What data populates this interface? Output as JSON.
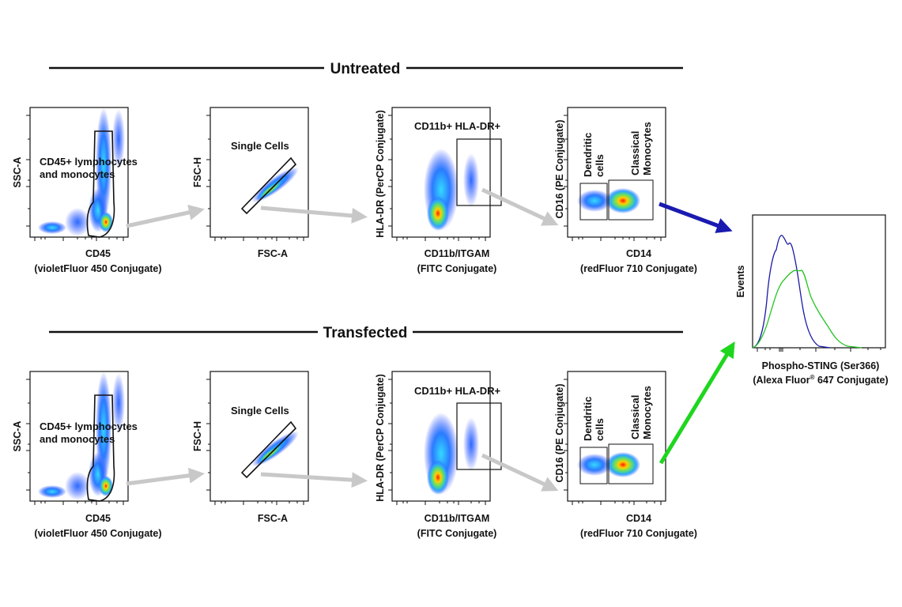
{
  "sections": {
    "untreated": "Untreated",
    "transfected": "Transfected"
  },
  "plots": {
    "cd45": {
      "ylabel": "SSC-A",
      "xlabel_line1": "CD45",
      "xlabel_line2": "(violetFluor 450 Conjugate)",
      "gate_line1": "CD45+ lymphocytes",
      "gate_line2": "and monocytes"
    },
    "singlets": {
      "ylabel": "FSC-H",
      "xlabel": "FSC-A",
      "gate": "Single Cells"
    },
    "cd11b": {
      "ylabel": "HLA-DR (PerCP Conjugate)",
      "xlabel_line1": "CD11b/ITGAM",
      "xlabel_line2": "(FITC Conjugate)",
      "gate": "CD11b+ HLA-DR+"
    },
    "cd14": {
      "ylabel": "CD16 (PE Conjugate)",
      "xlabel_line1": "CD14",
      "xlabel_line2": "(redFluor 710 Conjugate)",
      "gate_dc_line1": "Dendritic",
      "gate_dc_line2": "cells",
      "gate_mono_line1": "Classical",
      "gate_mono_line2": "Monocytes"
    }
  },
  "histogram": {
    "ylabel": "Events",
    "xlabel_line1": "Phospho-STING (Ser366)",
    "xlabel_line2_pre": "(Alexa Fluor",
    "xlabel_line2_sup": "®",
    "xlabel_line2_post": " 647 Conjugate)"
  },
  "colors": {
    "untreated_series": "#1a1aa6",
    "transfected_series": "#22c422",
    "gate_arrow": "#c8c8c8",
    "untreated_arrow": "#1a1ab0",
    "transfected_arrow": "#1ed61e"
  }
}
